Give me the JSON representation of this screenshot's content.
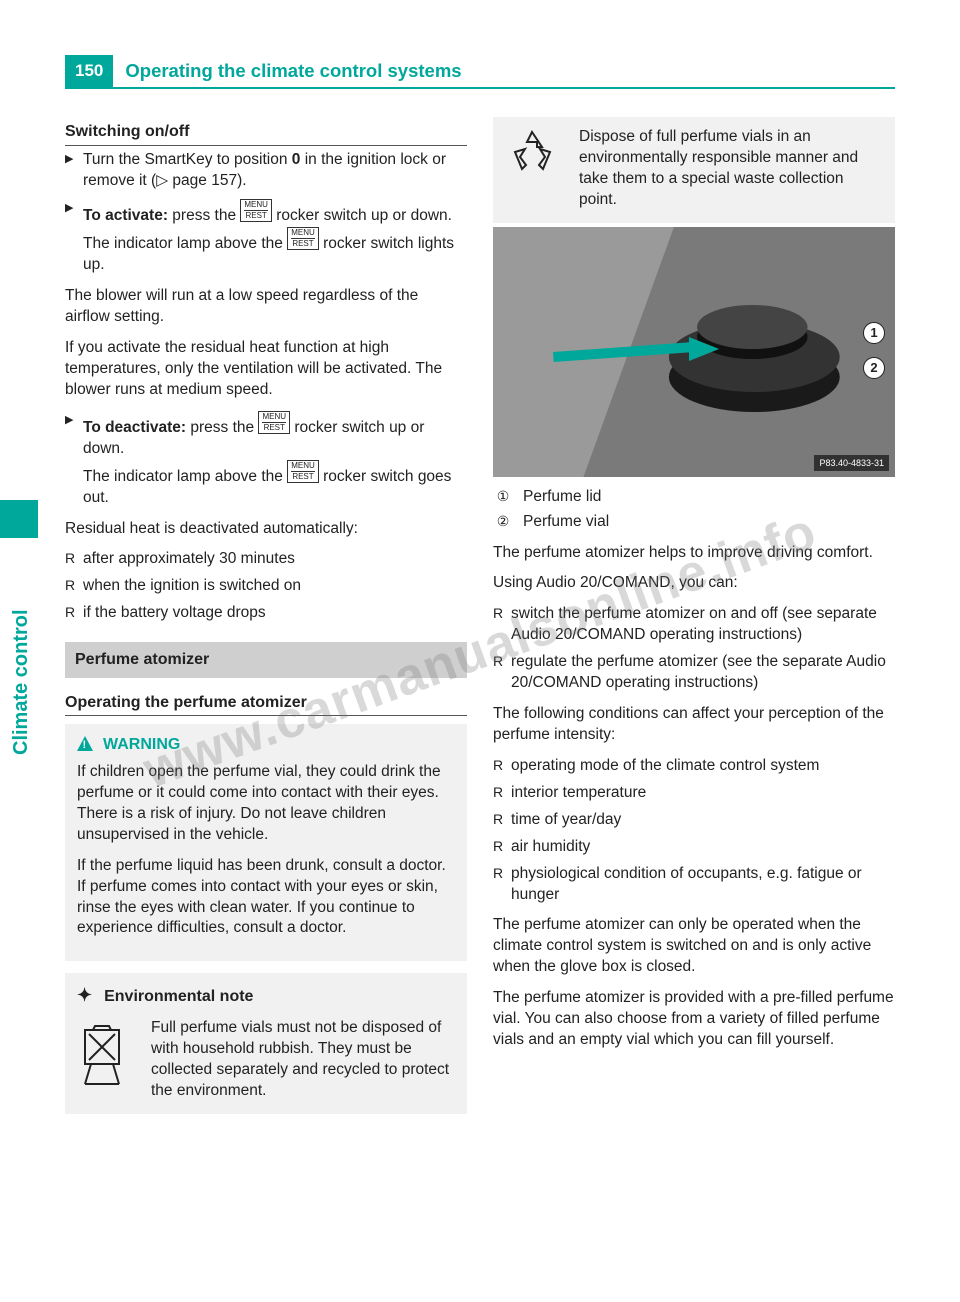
{
  "colors": {
    "teal": "#00a89c",
    "gray_box": "#f1f1f1",
    "gray_head": "#cfcfcf"
  },
  "page_number": "150",
  "page_title": "Operating the climate control systems",
  "side_tab": "Climate control",
  "watermark": "www.carmanualsonline.info",
  "left": {
    "h_switch": "Switching on/off",
    "steps": [
      "Turn the SmartKey to position <b>0</b> in the ignition lock or remove it (▷ page 157).",
      "<b>To activate:</b> press the <span class='icon-key'><span class='top'>MENU</span>REST</span> rocker switch up or down.<br>The indicator lamp above the <span class='icon-key'><span class='top'>MENU</span>REST</span> rocker switch lights up."
    ],
    "p1": "The blower will run at a low speed regardless of the airflow setting.",
    "p2": "If you activate the residual heat function at high temperatures, only the ventilation will be activated. The blower runs at medium speed.",
    "steps2": [
      "<b>To deactivate:</b> press the <span class='icon-key'><span class='top'>MENU</span>REST</span> rocker switch up or down.<br>The indicator lamp above the <span class='icon-key'><span class='top'>MENU</span>REST</span> rocker switch goes out."
    ],
    "p3": "Residual heat is deactivated automatically:",
    "auto_off": [
      "after approximately 30 minutes",
      "when the ignition is switched on",
      "if the battery voltage drops"
    ],
    "gray_head": "Perfume atomizer",
    "h_operate": "Operating the perfume atomizer",
    "warn_label": "WARNING",
    "warn_p1": "If children open the perfume vial, they could drink the perfume or it could come into contact with their eyes. There is a risk of injury. Do not leave children unsupervised in the vehicle.",
    "warn_p2": "If the perfume liquid has been drunk, consult a doctor. If perfume comes into contact with your eyes or skin, rinse the eyes with clean water. If you continue to experience difficulties, consult a doctor.",
    "env_label": "Environmental note",
    "env_text": "Full perfume vials must not be disposed of with household rubbish. They must be collected separately and recycled to protect the environment."
  },
  "right": {
    "env_text2": "Dispose of full perfume vials in an environmentally responsible manner and take them to a special waste collection point.",
    "figure_tag": "P83.40-4833-31",
    "legend": [
      {
        "n": "①",
        "t": "Perfume lid"
      },
      {
        "n": "②",
        "t": "Perfume vial"
      }
    ],
    "p1": "The perfume atomizer helps to improve driving comfort.",
    "p2": "Using Audio 20/COMAND, you can:",
    "can_list": [
      "switch the perfume atomizer on and off (see separate Audio 20/COMAND operating instructions)",
      "regulate the perfume atomizer (see the separate Audio 20/COMAND operating instructions)"
    ],
    "p3": "The following conditions can affect your perception of the perfume intensity:",
    "cond_list": [
      "operating mode of the climate control system",
      "interior temperature",
      "time of year/day",
      "air humidity",
      "physiological condition of occupants, e.g. fatigue or hunger"
    ],
    "p4": "The perfume atomizer can only be operated when the climate control system is switched on and is only active when the glove box is closed.",
    "p5": "The perfume atomizer is provided with a pre-filled perfume vial. You can also choose from a variety of filled perfume vials and an empty vial which you can fill yourself."
  }
}
